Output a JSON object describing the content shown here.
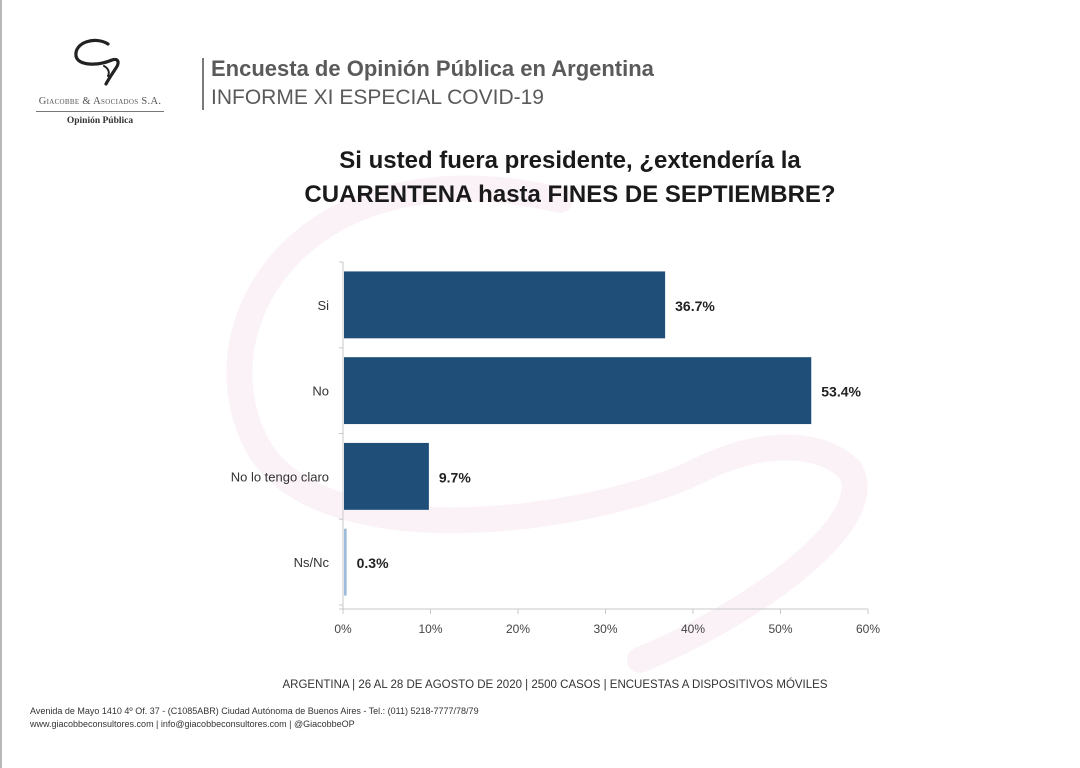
{
  "logo": {
    "company": "Giacobbe & Asociados S.A.",
    "division": "Opinión Pública"
  },
  "header": {
    "title": "Encuesta de Opinión Pública en Argentina",
    "subtitle": "INFORME XI ESPECIAL COVID-19"
  },
  "question": {
    "line1": "Si usted fuera presidente, ¿extendería la",
    "line2": "CUARENTENA hasta FINES DE SEPTIEMBRE?"
  },
  "chart_data": {
    "type": "bar",
    "orientation": "horizontal",
    "title": "Si usted fuera presidente, ¿extendería la CUARENTENA hasta FINES DE SEPTIEMBRE?",
    "categories": [
      "Si",
      "No",
      "No lo tengo claro",
      "Ns/Nc"
    ],
    "values": [
      36.7,
      53.4,
      9.7,
      0.3
    ],
    "value_labels": [
      "36.7%",
      "53.4%",
      "9.7%",
      "0.3%"
    ],
    "bar_colors": [
      "#1f4e79",
      "#1f4e79",
      "#1f4e79",
      "#9dbcd9"
    ],
    "xlim": [
      0,
      60
    ],
    "xticks": [
      0,
      10,
      20,
      30,
      40,
      50,
      60
    ],
    "xtick_labels": [
      "0%",
      "10%",
      "20%",
      "30%",
      "40%",
      "50%",
      "60%"
    ],
    "xlabel": "",
    "ylabel": "",
    "grid": false,
    "legend": "none",
    "unit": "%"
  },
  "footer": {
    "methodology": "ARGENTINA | 26 AL 28 DE AGOSTO DE 2020 | 2500 CASOS | ENCUESTAS A DISPOSITIVOS MÓVILES",
    "address": "Avenida de Mayo 1410 4º Of. 37 - (C1085ABR) Ciudad Autónoma de Buenos Aires - Tel.: (011) 5218-7777/78/79",
    "contact": "www.giacobbeconsultores.com  |  info@giacobbeconsultores.com  |  @GiacobbeOP"
  },
  "colors": {
    "bar_primary": "#1f4e79",
    "bar_secondary": "#9dbcd9",
    "header_text": "#5a5a5a",
    "axis": "#bfbfbf"
  }
}
